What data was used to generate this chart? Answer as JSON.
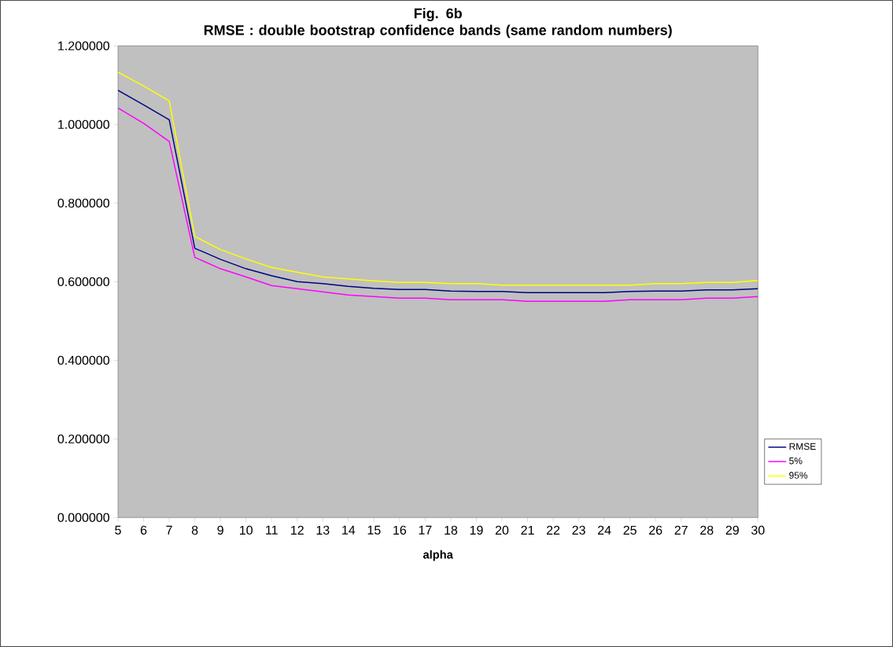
{
  "chart_data": {
    "type": "line",
    "title": "Fig. 6b\nRMSE : double bootstrap confidence bands (same random numbers)",
    "xlabel": "alpha",
    "x": [
      5,
      6,
      7,
      8,
      9,
      10,
      11,
      12,
      13,
      14,
      15,
      16,
      17,
      18,
      19,
      20,
      21,
      22,
      23,
      24,
      25,
      26,
      27,
      28,
      29,
      30
    ],
    "series": [
      {
        "name": "RMSE",
        "color": "#000080",
        "values": [
          1.087,
          1.05,
          1.012,
          0.685,
          0.657,
          0.633,
          0.615,
          0.6,
          0.595,
          0.588,
          0.583,
          0.58,
          0.58,
          0.576,
          0.575,
          0.575,
          0.572,
          0.572,
          0.572,
          0.572,
          0.575,
          0.576,
          0.576,
          0.579,
          0.579,
          0.582
        ]
      },
      {
        "name": "5%",
        "color": "#ff00ff",
        "values": [
          1.042,
          1.003,
          0.957,
          0.662,
          0.633,
          0.612,
          0.59,
          0.582,
          0.574,
          0.566,
          0.562,
          0.558,
          0.558,
          0.554,
          0.554,
          0.554,
          0.55,
          0.55,
          0.55,
          0.55,
          0.554,
          0.554,
          0.554,
          0.558,
          0.558,
          0.562
        ]
      },
      {
        "name": "95%",
        "color": "#ffff00",
        "values": [
          1.133,
          1.098,
          1.06,
          0.715,
          0.682,
          0.658,
          0.636,
          0.624,
          0.612,
          0.607,
          0.602,
          0.598,
          0.598,
          0.595,
          0.595,
          0.591,
          0.591,
          0.591,
          0.591,
          0.591,
          0.591,
          0.595,
          0.595,
          0.598,
          0.598,
          0.603
        ]
      }
    ],
    "xlim": [
      5,
      30
    ],
    "xticks": [
      5,
      6,
      7,
      8,
      9,
      10,
      11,
      12,
      13,
      14,
      15,
      16,
      17,
      18,
      19,
      20,
      21,
      22,
      23,
      24,
      25,
      26,
      27,
      28,
      29,
      30
    ],
    "ylim": [
      0,
      1.2
    ],
    "yticks": [
      {
        "value": 0,
        "label": "0.000000"
      },
      {
        "value": 0.2,
        "label": "0.200000"
      },
      {
        "value": 0.4,
        "label": "0.400000"
      },
      {
        "value": 0.6,
        "label": "0.600000"
      },
      {
        "value": 0.8,
        "label": "0.800000"
      },
      {
        "value": 1.0,
        "label": "1.000000"
      },
      {
        "value": 1.2,
        "label": "1.200000"
      }
    ],
    "grid": false,
    "legend": "right",
    "marker": "none",
    "line_style": "solid"
  }
}
